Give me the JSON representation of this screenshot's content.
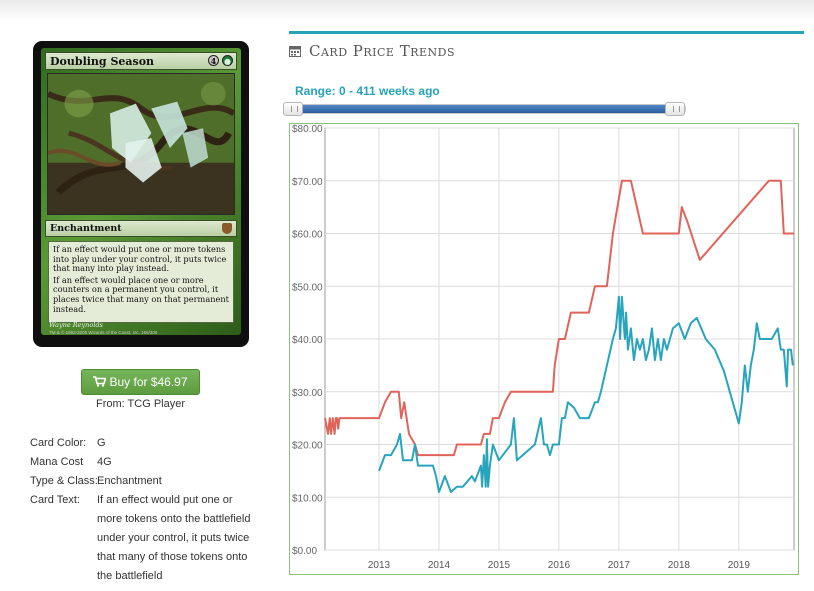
{
  "card": {
    "name": "Doubling Season",
    "mana_symbols": [
      "4",
      "G"
    ],
    "type_line": "Enchantment",
    "rules_text": [
      "If an effect would put one or more tokens into play under your control, it puts twice that many into play instead.",
      "If an effect would place one or more counters on a permanent you control, it places twice that many on that permanent instead."
    ],
    "artist": "Wayne Reynolds",
    "copyright": "TM & © 1993-2005 Wizards of the Coast, Inc. 156/306",
    "icons": [
      "set-symbol-icon"
    ]
  },
  "buy": {
    "label": "Buy for $46.97",
    "icon": "cart-icon",
    "color": "#5fa343",
    "from": "From: TCG Player"
  },
  "details": {
    "color_label": "Card Color:",
    "color_value": "G",
    "mana_label": "Mana Cost",
    "mana_value": "4G",
    "type_label": "Type & Class:",
    "type_value": "Enchantment",
    "text_label": "Card Text:",
    "text_value": "If an effect would put one or more tokens onto the battlefield under your control, it puts twice that many of those tokens onto the battlefield"
  },
  "trends": {
    "heading": "Card Price Trends",
    "heading_icon": "calendar-icon",
    "range_label": "Range: 0 - 411 weeks ago",
    "accent_color": "#27a3b8"
  },
  "chart_data": {
    "type": "line",
    "ylim": [
      0,
      80
    ],
    "yticks": [
      "$0.00",
      "$10.00",
      "$20.00",
      "$30.00",
      "$40.00",
      "$50.00",
      "$60.00",
      "$70.00",
      "$80.00"
    ],
    "xlim": [
      2012.1,
      2019.92
    ],
    "xticks": [
      "2013",
      "2014",
      "2015",
      "2016",
      "2017",
      "2018",
      "2019"
    ],
    "grid": true,
    "series": [
      {
        "color": "#e0645a",
        "points": [
          [
            2012.1,
            25
          ],
          [
            2012.15,
            22
          ],
          [
            2012.18,
            25
          ],
          [
            2012.2,
            22
          ],
          [
            2012.23,
            25
          ],
          [
            2012.26,
            22
          ],
          [
            2012.28,
            25
          ],
          [
            2012.3,
            25
          ],
          [
            2012.32,
            23
          ],
          [
            2012.34,
            25
          ],
          [
            2013.0,
            25
          ],
          [
            2013.1,
            28
          ],
          [
            2013.2,
            30
          ],
          [
            2013.33,
            30
          ],
          [
            2013.37,
            25
          ],
          [
            2013.42,
            28
          ],
          [
            2013.5,
            22
          ],
          [
            2013.6,
            20
          ],
          [
            2013.65,
            18
          ],
          [
            2014.0,
            18
          ],
          [
            2014.25,
            18
          ],
          [
            2014.3,
            20
          ],
          [
            2014.7,
            20
          ],
          [
            2014.75,
            22
          ],
          [
            2014.85,
            22
          ],
          [
            2014.9,
            25
          ],
          [
            2015.0,
            25
          ],
          [
            2015.1,
            28
          ],
          [
            2015.2,
            30
          ],
          [
            2015.6,
            30
          ],
          [
            2015.9,
            30
          ],
          [
            2015.93,
            35
          ],
          [
            2016.0,
            40
          ],
          [
            2016.1,
            40
          ],
          [
            2016.2,
            45
          ],
          [
            2016.5,
            45
          ],
          [
            2016.6,
            50
          ],
          [
            2016.8,
            50
          ],
          [
            2016.9,
            60
          ],
          [
            2017.05,
            70
          ],
          [
            2017.2,
            70
          ],
          [
            2017.3,
            65
          ],
          [
            2017.4,
            60
          ],
          [
            2017.9,
            60
          ],
          [
            2018.0,
            60
          ],
          [
            2018.05,
            65
          ],
          [
            2018.15,
            62
          ],
          [
            2018.35,
            55
          ],
          [
            2019.5,
            70
          ],
          [
            2019.7,
            70
          ],
          [
            2019.75,
            60
          ],
          [
            2019.92,
            60
          ]
        ]
      },
      {
        "color": "#29a4bd",
        "points": [
          [
            2013.0,
            15
          ],
          [
            2013.1,
            18
          ],
          [
            2013.2,
            18
          ],
          [
            2013.3,
            20
          ],
          [
            2013.35,
            22
          ],
          [
            2013.4,
            17
          ],
          [
            2013.55,
            17
          ],
          [
            2013.6,
            20
          ],
          [
            2013.65,
            16
          ],
          [
            2013.9,
            16
          ],
          [
            2013.95,
            14
          ],
          [
            2014.0,
            11
          ],
          [
            2014.1,
            14
          ],
          [
            2014.2,
            11
          ],
          [
            2014.3,
            12
          ],
          [
            2014.4,
            12
          ],
          [
            2014.55,
            14
          ],
          [
            2014.6,
            13
          ],
          [
            2014.7,
            16
          ],
          [
            2014.72,
            12
          ],
          [
            2014.75,
            18
          ],
          [
            2014.78,
            12
          ],
          [
            2014.8,
            21
          ],
          [
            2014.82,
            12
          ],
          [
            2014.85,
            16
          ],
          [
            2014.9,
            20
          ],
          [
            2015.0,
            17
          ],
          [
            2015.2,
            20
          ],
          [
            2015.25,
            25
          ],
          [
            2015.3,
            17
          ],
          [
            2015.6,
            20
          ],
          [
            2015.7,
            25
          ],
          [
            2015.75,
            20
          ],
          [
            2015.8,
            20
          ],
          [
            2015.85,
            18
          ],
          [
            2015.9,
            20
          ],
          [
            2016.0,
            20
          ],
          [
            2016.05,
            25
          ],
          [
            2016.1,
            25
          ],
          [
            2016.15,
            28
          ],
          [
            2016.25,
            27
          ],
          [
            2016.35,
            25
          ],
          [
            2016.5,
            25
          ],
          [
            2016.6,
            28
          ],
          [
            2016.65,
            28
          ],
          [
            2016.7,
            30
          ],
          [
            2016.8,
            35
          ],
          [
            2016.9,
            40
          ],
          [
            2016.95,
            42
          ],
          [
            2017.0,
            48
          ],
          [
            2017.02,
            40
          ],
          [
            2017.05,
            48
          ],
          [
            2017.08,
            43
          ],
          [
            2017.1,
            40
          ],
          [
            2017.12,
            45
          ],
          [
            2017.15,
            38
          ],
          [
            2017.2,
            42
          ],
          [
            2017.25,
            36
          ],
          [
            2017.3,
            40
          ],
          [
            2017.35,
            38
          ],
          [
            2017.4,
            40
          ],
          [
            2017.45,
            36
          ],
          [
            2017.5,
            38
          ],
          [
            2017.55,
            42
          ],
          [
            2017.6,
            36
          ],
          [
            2017.65,
            40
          ],
          [
            2017.7,
            36
          ],
          [
            2017.75,
            40
          ],
          [
            2017.8,
            38
          ],
          [
            2017.9,
            42
          ],
          [
            2018.0,
            43
          ],
          [
            2018.1,
            40
          ],
          [
            2018.2,
            43
          ],
          [
            2018.3,
            44
          ],
          [
            2018.45,
            40
          ],
          [
            2018.6,
            38
          ],
          [
            2018.75,
            34
          ],
          [
            2018.9,
            28
          ],
          [
            2019.0,
            24
          ],
          [
            2019.05,
            28
          ],
          [
            2019.1,
            35
          ],
          [
            2019.15,
            30
          ],
          [
            2019.2,
            35
          ],
          [
            2019.25,
            38
          ],
          [
            2019.3,
            43
          ],
          [
            2019.35,
            40
          ],
          [
            2019.45,
            40
          ],
          [
            2019.5,
            40
          ],
          [
            2019.55,
            40
          ],
          [
            2019.65,
            42
          ],
          [
            2019.7,
            38
          ],
          [
            2019.75,
            38
          ],
          [
            2019.8,
            31
          ],
          [
            2019.82,
            38
          ],
          [
            2019.87,
            38
          ],
          [
            2019.9,
            35
          ]
        ]
      }
    ]
  }
}
